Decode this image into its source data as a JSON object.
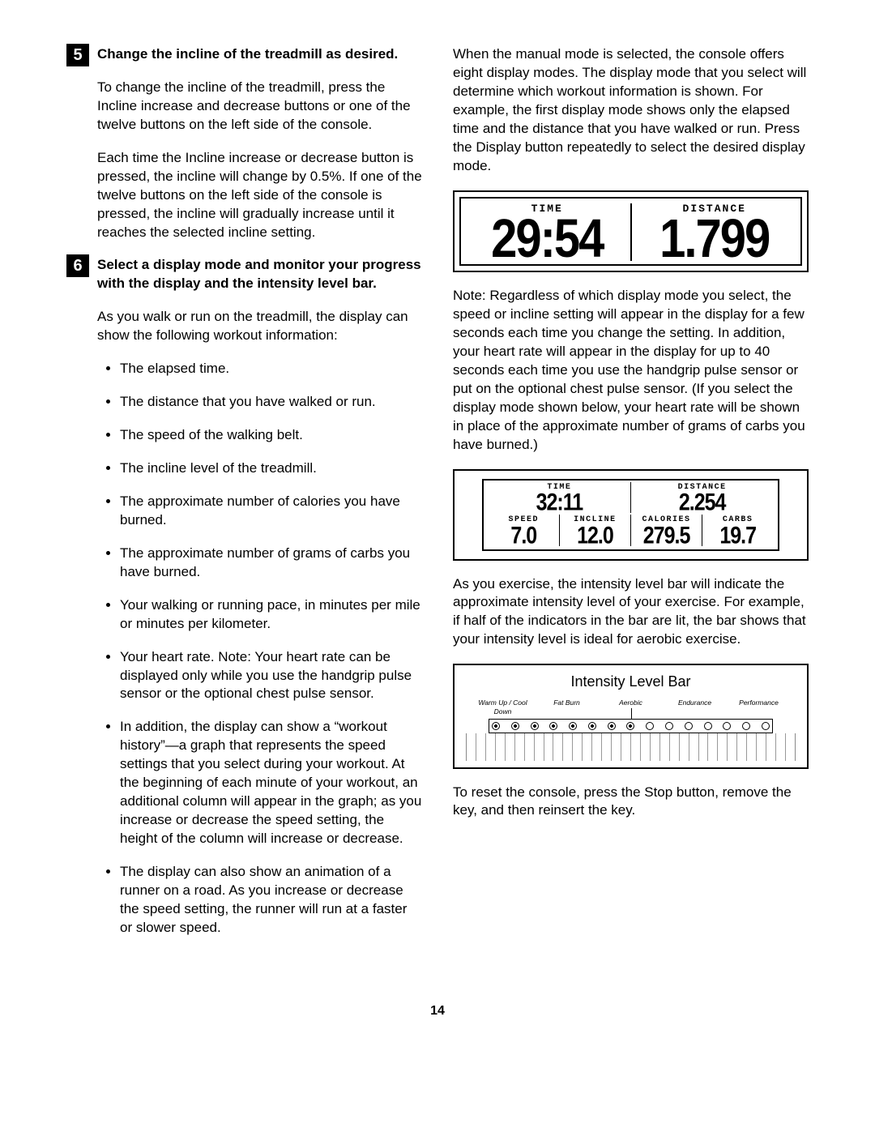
{
  "left": {
    "step5": {
      "num": "5",
      "title": "Change the incline of the treadmill as desired.",
      "p1": "To change the incline of the treadmill, press the Incline increase and decrease buttons or one of the twelve buttons on the left side of the console.",
      "p2": "Each time the Incline increase or decrease button is pressed, the incline will change by 0.5%. If one of the twelve buttons on the left side of the console is pressed, the incline will gradually increase until it reaches the selected incline setting."
    },
    "step6": {
      "num": "6",
      "title": "Select a display mode and monitor your progress with the display and the intensity level bar.",
      "intro": "As you walk or run on the treadmill, the display can show the following workout information:",
      "items": [
        "The elapsed time.",
        "The distance that you have walked or run.",
        "The speed of the walking belt.",
        "The incline level of the treadmill.",
        "The approximate number of calories you have burned.",
        "The approximate number of grams of carbs you have burned.",
        "Your walking or running pace, in minutes per mile or minutes per kilometer.",
        "Your heart rate. Note: Your heart rate can be displayed only while you use the handgrip pulse sensor or the optional chest pulse sensor.",
        "In addition, the display can show a “workout history”—a graph that represents the speed settings that you select during your workout. At the beginning of each minute of your workout, an additional column will appear in the graph; as you increase or decrease the speed setting, the height of the column will increase or decrease.",
        "The display can also show an animation of a runner on a road. As you increase or decrease the speed setting, the runner will run at a faster or slower speed."
      ]
    }
  },
  "right": {
    "p1": "When the manual mode is selected, the console offers eight display modes. The display mode that you select will determine which workout information is shown. For example, the first display mode shows only the elapsed time and the distance that you have walked or run. Press the Display button repeatedly to select the desired display mode.",
    "lcd1": {
      "time_label": "TIME",
      "distance_label": "DISTANCE",
      "time_value": "29:54",
      "distance_value": "1.799"
    },
    "p2": "Note: Regardless of which display mode you select, the speed or incline setting will appear in the display for a few seconds each time you change the setting. In addition, your heart rate will appear in the display for up to 40 seconds each time you use the handgrip pulse sensor or put on the optional chest pulse sensor. (If you select the display mode shown below, your heart rate will be shown in place of the approximate number of grams of carbs you have burned.)",
    "lcd2": {
      "time_label": "TIME",
      "distance_label": "DISTANCE",
      "time_value": "32:11",
      "distance_value": "2.254",
      "speed_label": "SPEED",
      "incline_label": "INCLINE",
      "calories_label": "CALORIES",
      "carbs_label": "CARBS",
      "speed_value": "7.0",
      "incline_value": "12.0",
      "calories_value": "279.5",
      "carbs_value": "19.7"
    },
    "p3": "As you exercise, the intensity level bar will indicate the approximate intensity level of your exercise. For example, if half of the indicators in the bar are lit, the bar shows that your intensity level is ideal for aerobic exercise.",
    "ibar": {
      "title": "Intensity Level Bar",
      "zones": [
        "Warm Up / Cool Down",
        "Fat Burn",
        "Aerobic",
        "Endurance",
        "Performance"
      ],
      "dots": [
        true,
        true,
        true,
        true,
        true,
        true,
        true,
        true,
        false,
        false,
        false,
        false,
        false,
        false,
        false
      ],
      "bar_count": 34
    },
    "p4": "To reset the console, press the Stop button, remove the key, and then reinsert the key."
  },
  "page_number": "14"
}
